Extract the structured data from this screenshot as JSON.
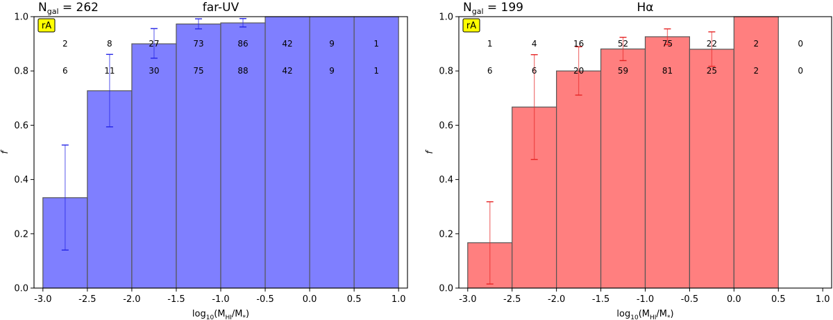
{
  "chart_data": [
    {
      "type": "bar",
      "id": "left",
      "title": "far-UV",
      "ngal_prefix": "N",
      "ngal_sub": "gal",
      "ngal_value": "= 262",
      "badge": "rA",
      "xlabel_main": "log",
      "xlabel_sub10": "10",
      "xlabel_open": "(M",
      "xlabel_subHI": "HI",
      "xlabel_close": "/M",
      "xlabel_star": "*",
      "xlabel_end": ")",
      "ylabel": "f",
      "xlim": [
        -3.1,
        1.1
      ],
      "ylim": [
        0,
        1.0
      ],
      "xticks": [
        "-3.0",
        "-2.5",
        "-2.0",
        "-1.5",
        "-1.0",
        "-0.5",
        "0.0",
        "0.5",
        "1.0"
      ],
      "yticks": [
        "0.0",
        "0.2",
        "0.4",
        "0.6",
        "0.8",
        "1.0"
      ],
      "bin_edges": [
        -3.0,
        -2.5,
        -2.0,
        -1.5,
        -1.0,
        -0.5,
        0.0,
        0.5,
        1.0
      ],
      "values": [
        0.333,
        0.727,
        0.9,
        0.973,
        0.977,
        1.0,
        1.0,
        1.0
      ],
      "err_low": [
        0.14,
        0.594,
        0.847,
        0.955,
        0.962,
        null,
        null,
        null
      ],
      "err_high": [
        0.527,
        0.861,
        0.956,
        0.992,
        0.993,
        null,
        null,
        null
      ],
      "counts_top": [
        "2",
        "8",
        "27",
        "73",
        "86",
        "42",
        "9",
        "1"
      ],
      "counts_bottom": [
        "6",
        "11",
        "30",
        "75",
        "88",
        "42",
        "9",
        "1"
      ],
      "fill": "#7f7fff",
      "err_color": "#2424e6"
    },
    {
      "type": "bar",
      "id": "right",
      "title": "Hα",
      "ngal_prefix": "N",
      "ngal_sub": "gal",
      "ngal_value": "= 199",
      "badge": "rA",
      "xlabel_main": "log",
      "xlabel_sub10": "10",
      "xlabel_open": "(M",
      "xlabel_subHI": "HI",
      "xlabel_close": "/M",
      "xlabel_star": "*",
      "xlabel_end": ")",
      "ylabel": "f",
      "xlim": [
        -3.1,
        1.1
      ],
      "ylim": [
        0,
        1.0
      ],
      "xticks": [
        "-3.0",
        "-2.5",
        "-2.0",
        "-1.5",
        "-1.0",
        "-0.5",
        "0.0",
        "0.5",
        "1.0"
      ],
      "yticks": [
        "0.0",
        "0.2",
        "0.4",
        "0.6",
        "0.8",
        "1.0"
      ],
      "bin_edges": [
        -3.0,
        -2.5,
        -2.0,
        -1.5,
        -1.0,
        -0.5,
        0.0,
        0.5,
        1.0
      ],
      "values": [
        0.167,
        0.667,
        0.8,
        0.881,
        0.926,
        0.88,
        1.0,
        null
      ],
      "err_low": [
        0.015,
        0.474,
        0.711,
        0.838,
        0.897,
        0.817,
        null,
        null
      ],
      "err_high": [
        0.318,
        0.86,
        0.889,
        0.924,
        0.955,
        0.944,
        null,
        null
      ],
      "counts_top": [
        "1",
        "4",
        "16",
        "52",
        "75",
        "22",
        "2",
        "0"
      ],
      "counts_bottom": [
        "6",
        "6",
        "20",
        "59",
        "81",
        "25",
        "2",
        "0"
      ],
      "fill": "#ff7f7f",
      "err_color": "#e62424"
    }
  ]
}
